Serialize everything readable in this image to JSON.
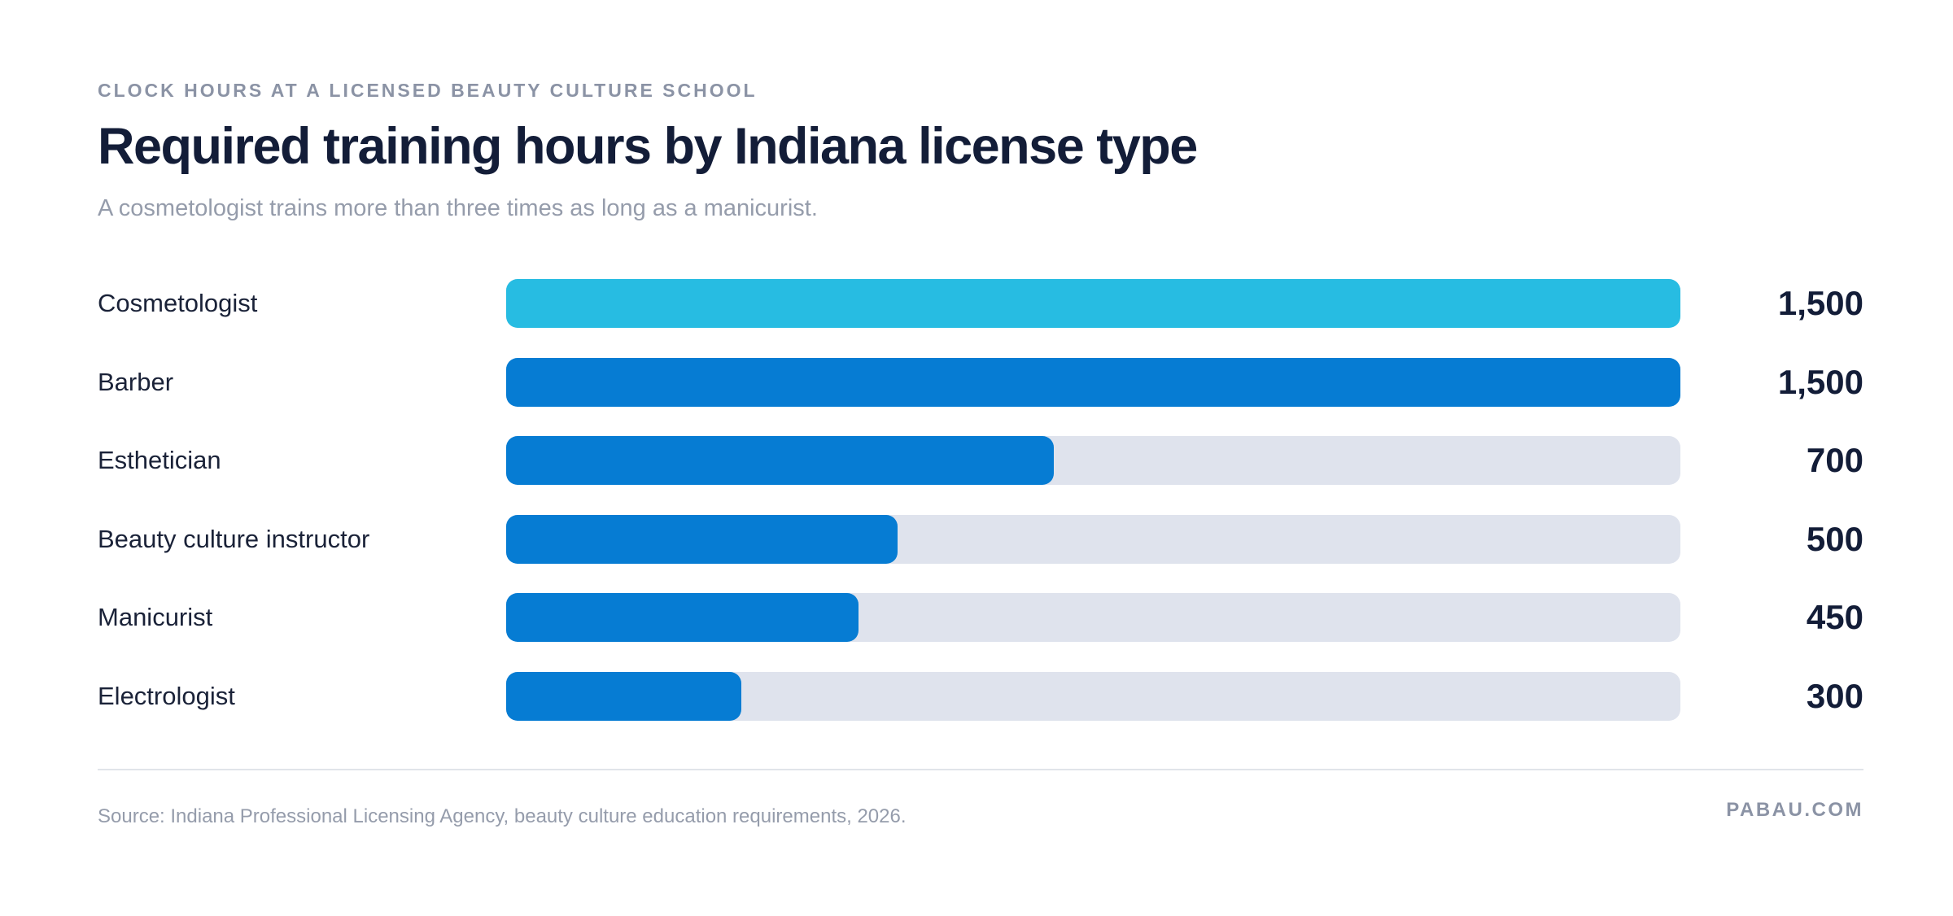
{
  "header": {
    "eyebrow": "CLOCK HOURS AT A LICENSED BEAUTY CULTURE SCHOOL",
    "title": "Required training hours by Indiana license type",
    "subtitle": "A cosmetologist trains more than three times as long as a manicurist."
  },
  "chart_data": {
    "type": "bar",
    "orientation": "horizontal",
    "title": "Required training hours by Indiana license type",
    "categories": [
      "Cosmetologist",
      "Barber",
      "Esthetician",
      "Beauty culture instructor",
      "Manicurist",
      "Electrologist"
    ],
    "values": [
      1500,
      1500,
      700,
      500,
      450,
      300
    ],
    "value_labels": [
      "1,500",
      "1,500",
      "700",
      "500",
      "450",
      "300"
    ],
    "xlim": [
      0,
      1500
    ],
    "grid": false,
    "legend": "none",
    "colors": {
      "highlight": "#27bce2",
      "bar": "#067cd3",
      "track": "#dfe3ed"
    },
    "highlight_index": 0
  },
  "footer": {
    "source": "Source: Indiana Professional Licensing Agency, beauty culture education requirements, 2026.",
    "brand": "PABAU.COM"
  }
}
